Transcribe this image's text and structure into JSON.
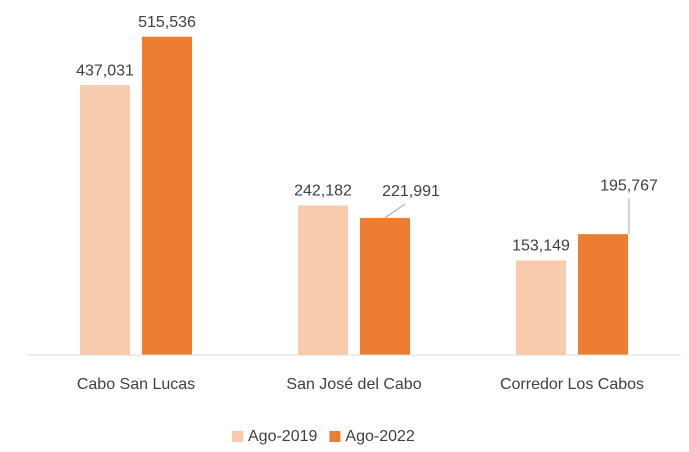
{
  "chart_data": {
    "type": "bar",
    "categories": [
      "Cabo San Lucas",
      "San José del Cabo",
      "Corredor Los Cabos"
    ],
    "series": [
      {
        "name": "Ago-2019",
        "color": "#f8cbad",
        "values": [
          437031,
          242182,
          153149
        ],
        "value_labels": [
          "437,031",
          "242,182",
          "153,149"
        ]
      },
      {
        "name": "Ago-2022",
        "color": "#ed7d31",
        "values": [
          515536,
          221991,
          195767
        ],
        "value_labels": [
          "515,536",
          "221,991",
          "195,767"
        ]
      }
    ],
    "ylim": [
      0,
      575000
    ]
  }
}
